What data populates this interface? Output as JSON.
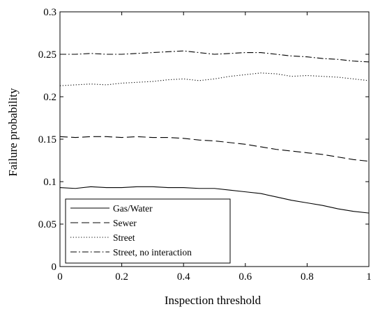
{
  "chart_data": {
    "type": "line",
    "xlabel": "Inspection threshold",
    "ylabel": "Failure probability",
    "xlim": [
      0,
      1
    ],
    "ylim": [
      0,
      0.3
    ],
    "xticks": [
      0,
      0.2,
      0.4,
      0.6,
      0.8,
      1
    ],
    "yticks": [
      0,
      0.05,
      0.1,
      0.15,
      0.2,
      0.25,
      0.3
    ],
    "xtick_labels": [
      "0",
      "0.2",
      "0.4",
      "0.6",
      "0.8",
      "1"
    ],
    "ytick_labels": [
      "0",
      "0.05",
      "0.1",
      "0.15",
      "0.2",
      "0.25",
      "0.3"
    ],
    "grid": false,
    "legend_position": "bottom-left",
    "x": [
      0,
      0.05,
      0.1,
      0.15,
      0.2,
      0.25,
      0.3,
      0.35,
      0.4,
      0.45,
      0.5,
      0.55,
      0.6,
      0.65,
      0.7,
      0.75,
      0.8,
      0.85,
      0.9,
      0.95,
      1.0
    ],
    "series": [
      {
        "name": "Gas/Water",
        "style": "solid",
        "color": "#000000",
        "values": [
          0.093,
          0.092,
          0.094,
          0.093,
          0.093,
          0.094,
          0.094,
          0.093,
          0.093,
          0.092,
          0.092,
          0.09,
          0.088,
          0.086,
          0.082,
          0.078,
          0.075,
          0.072,
          0.068,
          0.065,
          0.063
        ]
      },
      {
        "name": "Sewer",
        "style": "dashed",
        "color": "#000000",
        "values": [
          0.153,
          0.152,
          0.153,
          0.153,
          0.152,
          0.153,
          0.152,
          0.152,
          0.151,
          0.149,
          0.148,
          0.146,
          0.144,
          0.141,
          0.138,
          0.136,
          0.134,
          0.132,
          0.129,
          0.126,
          0.124
        ]
      },
      {
        "name": "Street",
        "style": "dotted",
        "color": "#000000",
        "values": [
          0.213,
          0.214,
          0.215,
          0.214,
          0.216,
          0.217,
          0.218,
          0.22,
          0.221,
          0.219,
          0.221,
          0.224,
          0.226,
          0.228,
          0.227,
          0.224,
          0.225,
          0.224,
          0.223,
          0.221,
          0.219
        ]
      },
      {
        "name": "Street, no interaction",
        "style": "dashdot",
        "color": "#000000",
        "values": [
          0.25,
          0.25,
          0.251,
          0.25,
          0.25,
          0.251,
          0.252,
          0.253,
          0.254,
          0.252,
          0.25,
          0.251,
          0.252,
          0.252,
          0.25,
          0.248,
          0.247,
          0.245,
          0.244,
          0.242,
          0.241
        ]
      }
    ]
  }
}
